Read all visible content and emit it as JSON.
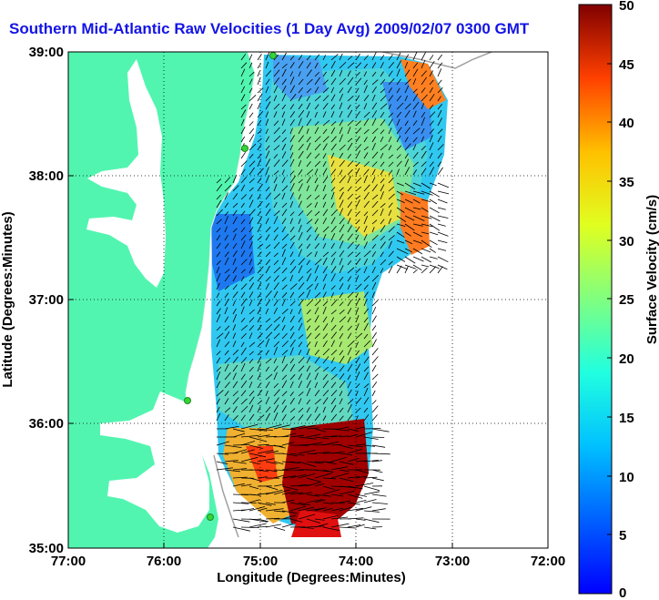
{
  "title": "Southern Mid-Atlantic Raw Velocities (1 Day Avg) 2009/02/07 0300 GMT",
  "x_axis": {
    "label": "Longitude (Degrees:Minutes)",
    "ticks": [
      "77:00",
      "76:00",
      "75:00",
      "74:00",
      "73:00",
      "72:00"
    ]
  },
  "y_axis": {
    "label": "Latitude (Degrees:Minutes)",
    "ticks": [
      "39:00",
      "38:00",
      "37:00",
      "36:00",
      "35:00"
    ]
  },
  "colorbar": {
    "label": "Surface Velocity (cm/s)",
    "ticks": [
      "50",
      "45",
      "40",
      "35",
      "30",
      "25",
      "20",
      "15",
      "10",
      "5",
      "0"
    ],
    "min": 0,
    "max": 50
  },
  "colors": {
    "land": "#52f5b0",
    "title": "#1414e6",
    "stations": "#35d435"
  },
  "grid": "dotted"
}
